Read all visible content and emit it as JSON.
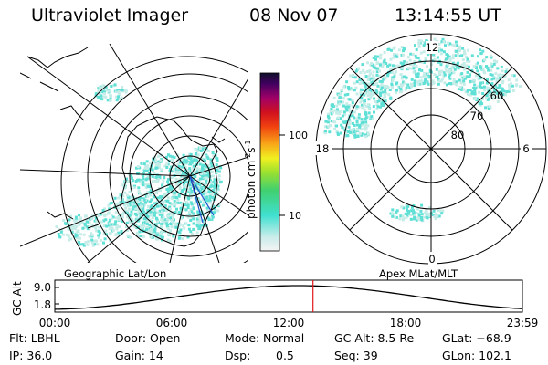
{
  "header": {
    "title": "Ultraviolet Imager",
    "date": "08 Nov 07",
    "time": "13:14:55 UT"
  },
  "colorbar": {
    "unit": "photon cm^-2 s^-1",
    "unit_base": "photon cm",
    "unit_exp1": "-2",
    "unit_mid": "s",
    "unit_exp2": "-1",
    "ticks": [
      "100",
      "10"
    ]
  },
  "left_map": {
    "caption": "Geographic Lat/Lon"
  },
  "right_map": {
    "caption": "Apex MLat/MLT",
    "mlt_labels": [
      "12",
      "18",
      "6",
      "0"
    ],
    "lat_labels": [
      "60",
      "70",
      "80"
    ]
  },
  "timeline": {
    "axis_label": "GC Alt",
    "y_ticks": [
      "9.0",
      "1.8"
    ],
    "x_ticks": [
      "00:00",
      "06:00",
      "12:00",
      "18:00",
      "23:59"
    ],
    "current_time_hours": 13.25
  },
  "info": {
    "row1": {
      "flt": "Flt: LBHL",
      "door": "Door: Open",
      "mode_label": "Mode:",
      "mode_value": "Normal",
      "gcalt": "GC Alt: 8.5 Re",
      "glat": "GLat: −68.9"
    },
    "row2": {
      "ip": "IP: 36.0",
      "gain": "Gain: 14",
      "dsp_label": "Dsp:",
      "dsp_value": "0.5",
      "seq": "Seq: 39",
      "glon": "GLon: 102.1"
    }
  },
  "colors": {
    "aurora_cyan": "#5fe0d6",
    "aurora_pale": "#c6ece8",
    "marker_red": "#e01818",
    "nadir_blue": "#2050d0"
  }
}
